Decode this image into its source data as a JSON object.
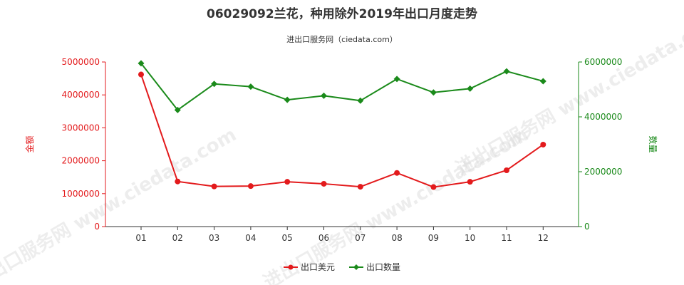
{
  "chart_data": {
    "type": "line",
    "title": "06029092兰花，种用除外2019年出口月度走势",
    "subtitle": "进出口服务网（ciedata.com）",
    "watermark": "进出口服务网 www.ciedata.com",
    "categories": [
      "01",
      "02",
      "03",
      "04",
      "05",
      "06",
      "07",
      "08",
      "09",
      "10",
      "11",
      "12"
    ],
    "y_left": {
      "label": "金额",
      "ylim": [
        0,
        5000000
      ],
      "ticks": [
        "0",
        "1000000",
        "2000000",
        "3000000",
        "4000000",
        "5000000"
      ],
      "color": "#e31a1c"
    },
    "y_right": {
      "label": "数量",
      "ylim": [
        0,
        6000000
      ],
      "ticks": [
        "0",
        "2000000",
        "4000000",
        "6000000"
      ],
      "color": "#1a8a1a"
    },
    "series": [
      {
        "name": "出口美元",
        "axis": "left",
        "color": "#e31a1c",
        "marker": "circle",
        "values": [
          4620000,
          1370000,
          1220000,
          1230000,
          1360000,
          1300000,
          1210000,
          1630000,
          1200000,
          1360000,
          1710000,
          2490000
        ]
      },
      {
        "name": "出口数量",
        "axis": "right",
        "color": "#1a8a1a",
        "marker": "diamond",
        "values": [
          5950000,
          4250000,
          5200000,
          5100000,
          4620000,
          4770000,
          4590000,
          5380000,
          4890000,
          5030000,
          5660000,
          5300000
        ]
      }
    ],
    "legend_position": "bottom-center",
    "grid": false
  }
}
